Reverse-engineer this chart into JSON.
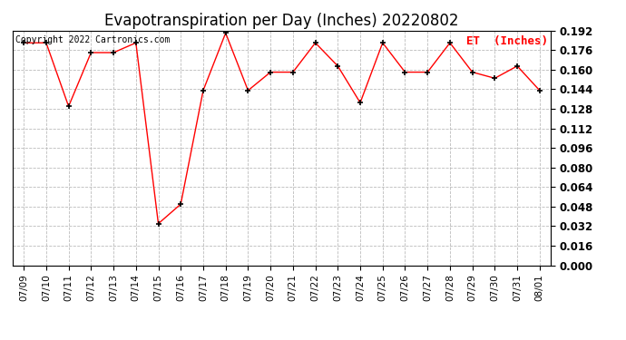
{
  "title": "Evapotranspiration per Day (Inches) 20220802",
  "legend_label": "ET  (Inches)",
  "copyright_text": "Copyright 2022 Cartronics.com",
  "x_labels": [
    "07/09",
    "07/10",
    "07/11",
    "07/12",
    "07/13",
    "07/14",
    "07/15",
    "07/16",
    "07/17",
    "07/18",
    "07/19",
    "07/20",
    "07/21",
    "07/22",
    "07/23",
    "07/24",
    "07/25",
    "07/26",
    "07/27",
    "07/28",
    "07/29",
    "07/30",
    "07/31",
    "08/01"
  ],
  "y_values": [
    0.182,
    0.182,
    0.13,
    0.174,
    0.174,
    0.182,
    0.034,
    0.05,
    0.143,
    0.19,
    0.143,
    0.158,
    0.158,
    0.182,
    0.163,
    0.133,
    0.182,
    0.158,
    0.158,
    0.182,
    0.158,
    0.153,
    0.163,
    0.143
  ],
  "line_color": "red",
  "marker_color": "black",
  "marker_style": "+",
  "ylim_min": 0.0,
  "ylim_max": 0.19,
  "ytick_step": 0.016,
  "background_color": "#ffffff",
  "grid_color": "#bbbbbb",
  "title_fontsize": 12,
  "copyright_fontsize": 7,
  "legend_fontsize": 9,
  "tick_fontsize": 8.5,
  "xtick_fontsize": 7.5
}
